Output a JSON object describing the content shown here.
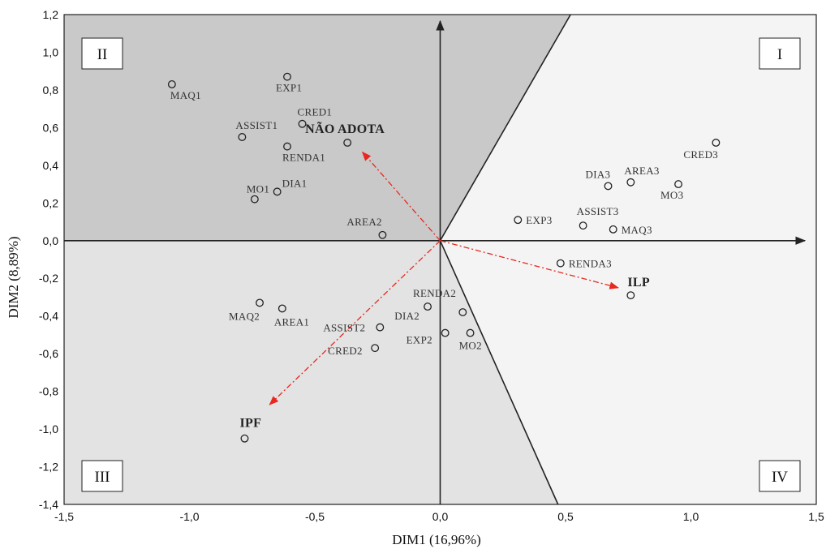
{
  "chart_data": {
    "type": "scatter",
    "xlabel": "DIM1 (16,96%)",
    "ylabel": "DIM2 (8,89%)",
    "xlim": [
      -1.5,
      1.5
    ],
    "ylim": [
      -1.4,
      1.2
    ],
    "x_ticks": [
      "-1,5",
      "-1,0",
      "-0,5",
      "0,0",
      "0,5",
      "1,0",
      "1,5"
    ],
    "y_ticks": [
      "-1,4",
      "-1,2",
      "-1,0",
      "-0,8",
      "-0,6",
      "-0,4",
      "-0,2",
      "0,0",
      "0,2",
      "0,4",
      "0,6",
      "0,8",
      "1,0",
      "1,2"
    ],
    "quadrant_labels": [
      "I",
      "II",
      "III",
      "IV"
    ],
    "points": [
      {
        "label": "MAQ1",
        "x": -1.07,
        "y": 0.83
      },
      {
        "label": "EXP1",
        "x": -0.61,
        "y": 0.87
      },
      {
        "label": "CRED1",
        "x": -0.55,
        "y": 0.62
      },
      {
        "label": "ASSIST1",
        "x": -0.79,
        "y": 0.55
      },
      {
        "label": "RENDA1",
        "x": -0.61,
        "y": 0.5
      },
      {
        "label": "NÃO ADOTA",
        "x": -0.37,
        "y": 0.52
      },
      {
        "label": "DIA1",
        "x": -0.65,
        "y": 0.26
      },
      {
        "label": "MO1",
        "x": -0.74,
        "y": 0.22
      },
      {
        "label": "AREA2",
        "x": -0.23,
        "y": 0.03
      },
      {
        "label": "CRED3",
        "x": 1.1,
        "y": 0.52
      },
      {
        "label": "DIA3",
        "x": 0.67,
        "y": 0.29
      },
      {
        "label": "AREA3",
        "x": 0.76,
        "y": 0.31
      },
      {
        "label": "MO3",
        "x": 0.95,
        "y": 0.3
      },
      {
        "label": "EXP3",
        "x": 0.31,
        "y": 0.11
      },
      {
        "label": "ASSIST3",
        "x": 0.57,
        "y": 0.08
      },
      {
        "label": "MAQ3",
        "x": 0.69,
        "y": 0.06
      },
      {
        "label": "RENDA3",
        "x": 0.48,
        "y": -0.12
      },
      {
        "label": "ILP",
        "x": 0.76,
        "y": -0.29
      },
      {
        "label": "MAQ2",
        "x": -0.72,
        "y": -0.33
      },
      {
        "label": "AREA1",
        "x": -0.63,
        "y": -0.36
      },
      {
        "label": "RENDA2",
        "x": -0.05,
        "y": -0.35
      },
      {
        "label": "DIA2",
        "x": 0.09,
        "y": -0.38
      },
      {
        "label": "ASSIST2",
        "x": -0.24,
        "y": -0.46
      },
      {
        "label": "EXP2",
        "x": 0.02,
        "y": -0.49
      },
      {
        "label": "MO2",
        "x": 0.12,
        "y": -0.49
      },
      {
        "label": "CRED2",
        "x": -0.26,
        "y": -0.57
      },
      {
        "label": "IPF",
        "x": -0.78,
        "y": -1.05
      }
    ],
    "vectors": [
      {
        "to": "NÃO ADOTA",
        "x": -0.31,
        "y": 0.47
      },
      {
        "to": "ILP",
        "x": 0.71,
        "y": -0.25
      },
      {
        "to": "IPF",
        "x": -0.68,
        "y": -0.87
      }
    ],
    "colors": {
      "vector": "#e8281e",
      "region_dark": "#c9c9c9",
      "region_mid": "#e3e3e3",
      "region_light": "#f4f4f4"
    },
    "grid": false
  }
}
